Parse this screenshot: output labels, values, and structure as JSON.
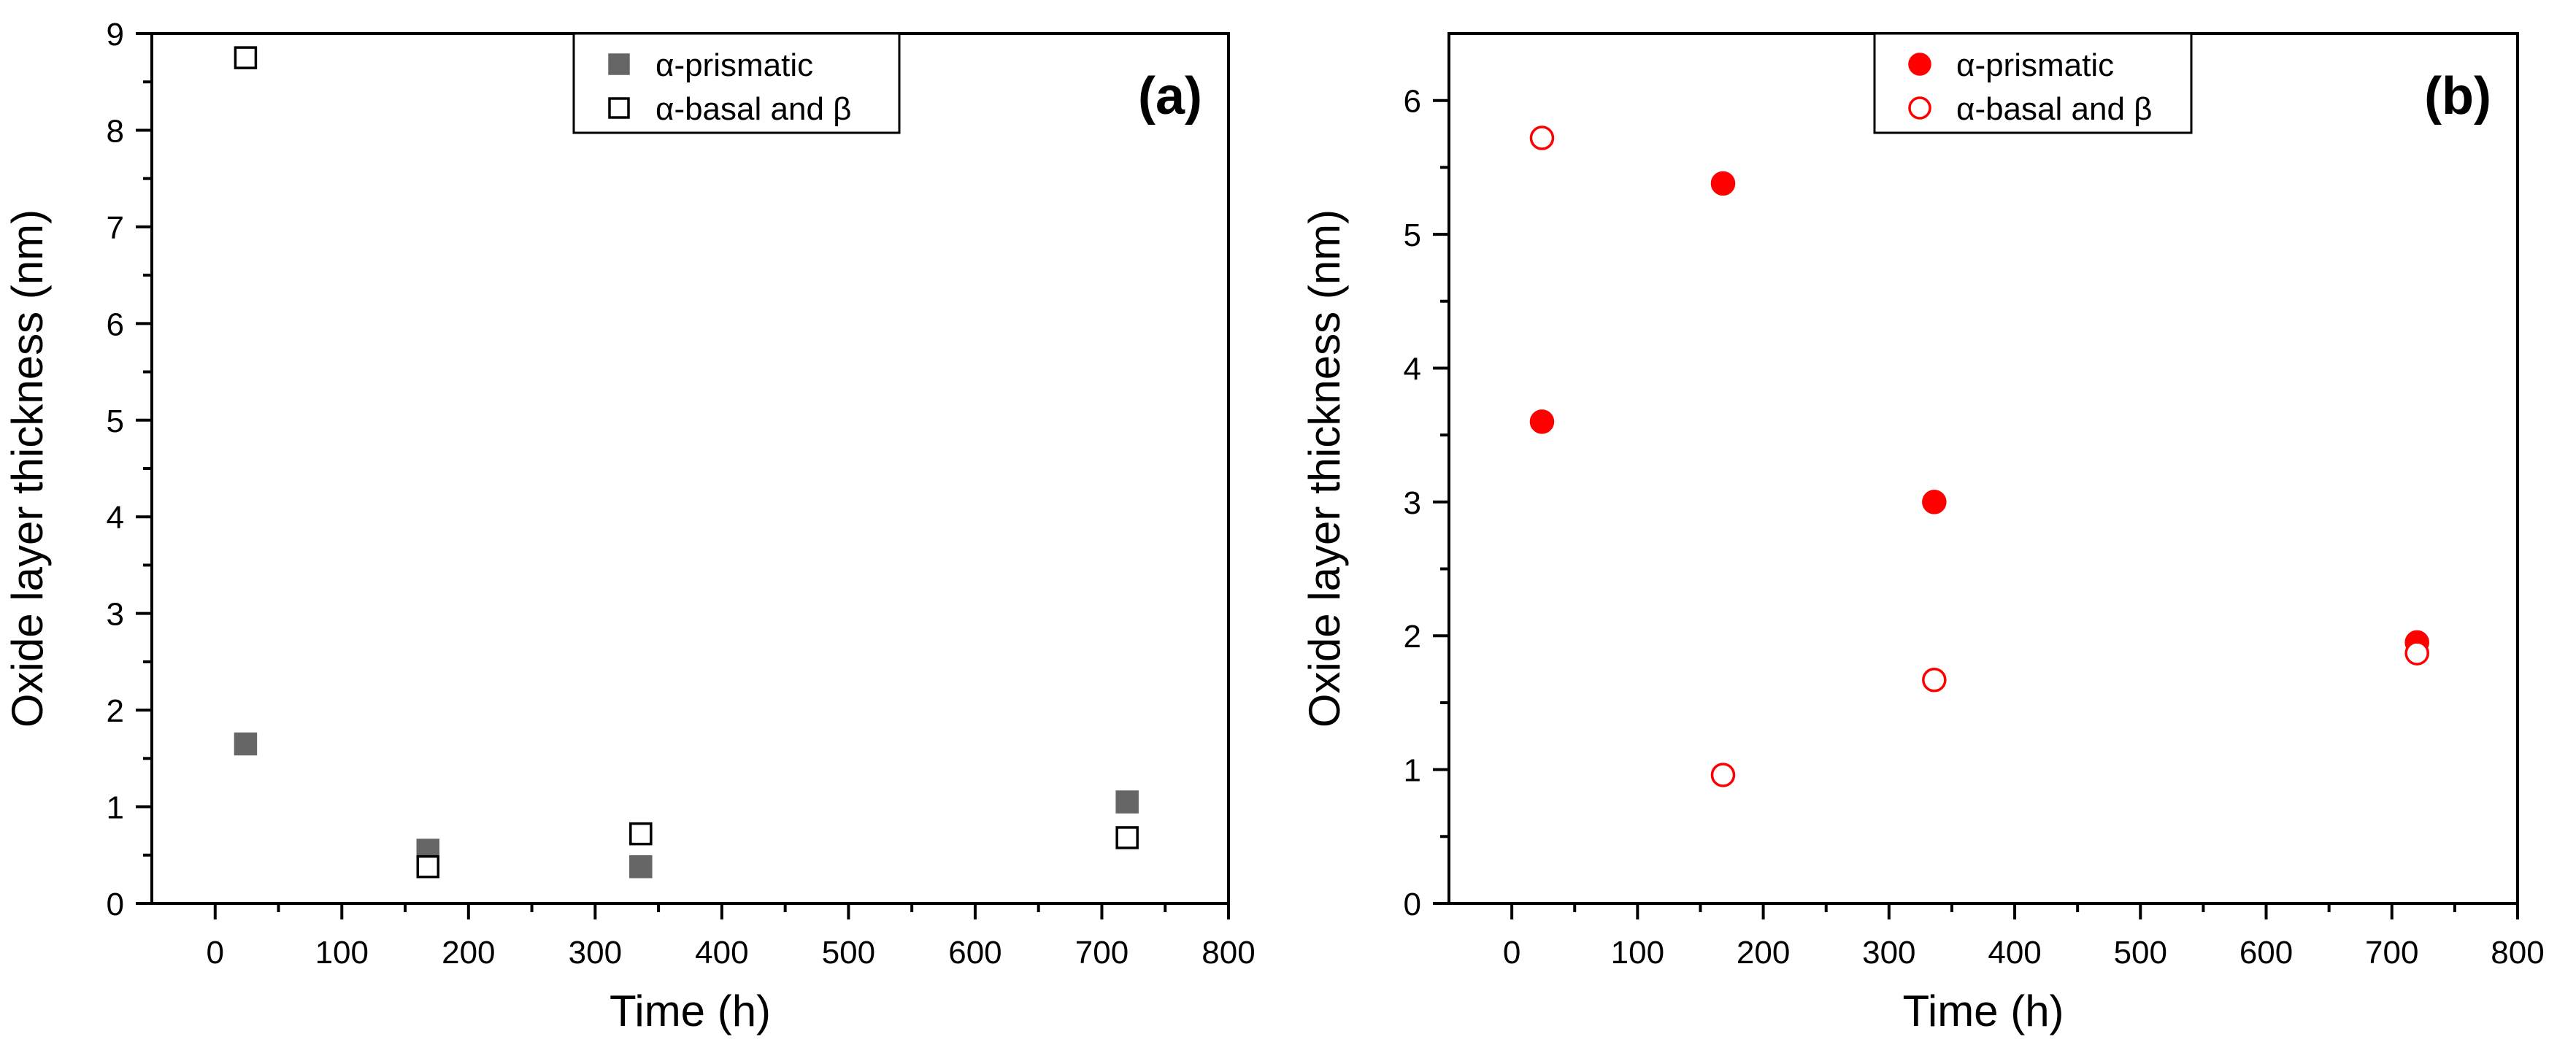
{
  "chart_data": [
    {
      "type": "scatter",
      "panel_label": "(a)",
      "xlabel": "Time (h)",
      "ylabel": "Oxide layer thickness (nm)",
      "xlim": [
        -50,
        800
      ],
      "ylim": [
        0,
        9
      ],
      "xticks": [
        0,
        100,
        200,
        300,
        400,
        500,
        600,
        700,
        800
      ],
      "yticks": [
        0,
        1,
        2,
        3,
        4,
        5,
        6,
        7,
        8,
        9
      ],
      "legend_position": "top-center",
      "series": [
        {
          "name": "α-prismatic",
          "marker": "square",
          "filled": true,
          "color": "#666666",
          "x": [
            24,
            168,
            336,
            720
          ],
          "y": [
            1.65,
            0.55,
            0.38,
            1.05
          ]
        },
        {
          "name": "α-basal and β",
          "marker": "square",
          "filled": false,
          "color": "#000000",
          "x": [
            24,
            168,
            336,
            720
          ],
          "y": [
            8.75,
            0.38,
            0.72,
            0.68
          ]
        }
      ]
    },
    {
      "type": "scatter",
      "panel_label": "(b)",
      "xlabel": "Time (h)",
      "ylabel": "Oxide layer thickness (nm)",
      "xlim": [
        -50,
        800
      ],
      "ylim": [
        0,
        6.5
      ],
      "xticks": [
        0,
        100,
        200,
        300,
        400,
        500,
        600,
        700,
        800
      ],
      "yticks": [
        0,
        1,
        2,
        3,
        4,
        5,
        6
      ],
      "legend_position": "top-center",
      "series": [
        {
          "name": "α-prismatic",
          "marker": "circle",
          "filled": true,
          "color": "#ff0000",
          "x": [
            24,
            168,
            336,
            720
          ],
          "y": [
            3.6,
            5.38,
            3.0,
            1.95
          ]
        },
        {
          "name": "α-basal and β",
          "marker": "circle",
          "filled": false,
          "color": "#ff0000",
          "x": [
            24,
            168,
            336,
            720
          ],
          "y": [
            5.72,
            0.96,
            1.67,
            1.87
          ]
        }
      ]
    }
  ]
}
